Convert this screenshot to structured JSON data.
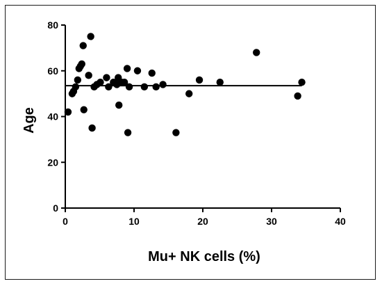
{
  "chart_data": {
    "type": "scatter",
    "title": "",
    "xlabel": "Mu+ NK cells (%)",
    "ylabel": "Age",
    "xlim": [
      0,
      40
    ],
    "ylim": [
      0,
      80
    ],
    "xticks": [
      "0",
      "10",
      "20",
      "30",
      "40"
    ],
    "yticks": [
      "0",
      "20",
      "40",
      "60",
      "80"
    ],
    "grid": false,
    "legend": "none",
    "marker_color": "#000000",
    "points": [
      {
        "x": 0.4,
        "y": 42
      },
      {
        "x": 1.0,
        "y": 50
      },
      {
        "x": 1.2,
        "y": 51
      },
      {
        "x": 1.5,
        "y": 53
      },
      {
        "x": 1.8,
        "y": 56
      },
      {
        "x": 2.0,
        "y": 61
      },
      {
        "x": 2.2,
        "y": 62
      },
      {
        "x": 2.4,
        "y": 63
      },
      {
        "x": 2.6,
        "y": 71
      },
      {
        "x": 2.7,
        "y": 43
      },
      {
        "x": 3.4,
        "y": 58
      },
      {
        "x": 3.7,
        "y": 75
      },
      {
        "x": 3.9,
        "y": 35
      },
      {
        "x": 4.2,
        "y": 53
      },
      {
        "x": 4.6,
        "y": 54
      },
      {
        "x": 5.1,
        "y": 55
      },
      {
        "x": 6.0,
        "y": 57
      },
      {
        "x": 6.3,
        "y": 53
      },
      {
        "x": 7.0,
        "y": 55
      },
      {
        "x": 7.5,
        "y": 54
      },
      {
        "x": 7.7,
        "y": 57
      },
      {
        "x": 7.8,
        "y": 45
      },
      {
        "x": 8.2,
        "y": 55
      },
      {
        "x": 8.6,
        "y": 55
      },
      {
        "x": 9.0,
        "y": 61
      },
      {
        "x": 9.1,
        "y": 33
      },
      {
        "x": 9.3,
        "y": 53
      },
      {
        "x": 10.5,
        "y": 60
      },
      {
        "x": 11.5,
        "y": 53
      },
      {
        "x": 12.6,
        "y": 59
      },
      {
        "x": 13.2,
        "y": 53
      },
      {
        "x": 14.2,
        "y": 54
      },
      {
        "x": 16.1,
        "y": 33
      },
      {
        "x": 18.0,
        "y": 50
      },
      {
        "x": 19.5,
        "y": 56
      },
      {
        "x": 22.5,
        "y": 55
      },
      {
        "x": 27.8,
        "y": 68
      },
      {
        "x": 33.8,
        "y": 49
      },
      {
        "x": 34.4,
        "y": 55
      }
    ],
    "fit_line": {
      "x": [
        0,
        34.4
      ],
      "y": [
        53.5,
        53.5
      ]
    }
  }
}
